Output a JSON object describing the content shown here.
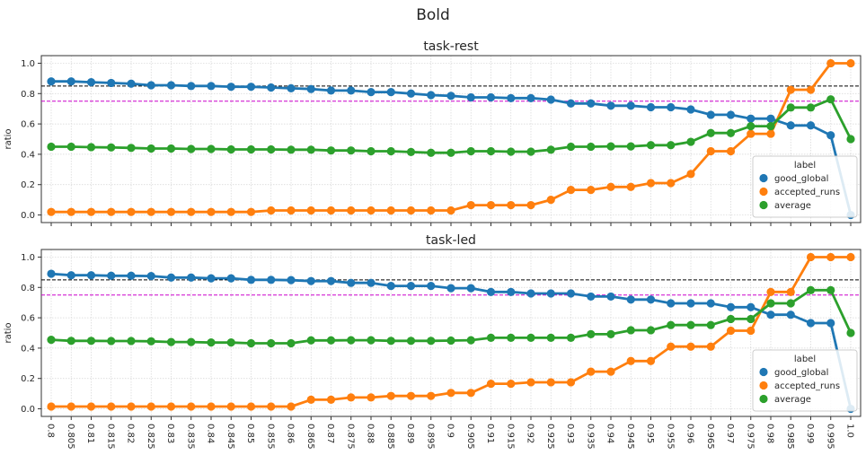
{
  "figure": {
    "suptitle": "Bold"
  },
  "colors": {
    "good_global": "#1f77b4",
    "accepted_runs": "#ff7f0e",
    "average": "#2ca02c",
    "ref_line_085": "#000000",
    "ref_line_075": "#cc00cc"
  },
  "chart_data": [
    {
      "type": "line",
      "title": "task-rest",
      "xlabel": "",
      "ylabel": "ratio",
      "ylim": [
        -0.05,
        1.05
      ],
      "yticks": [
        0.0,
        0.2,
        0.4,
        0.6,
        0.8,
        1.0
      ],
      "ytick_labels": [
        "0.0",
        "0.2",
        "0.4",
        "0.6",
        "0.8",
        "1.0"
      ],
      "show_xtick_labels": false,
      "grid": true,
      "legend": {
        "title": "label",
        "position": "lower-right"
      },
      "reference_lines": [
        {
          "y": 0.85,
          "style": "dashed",
          "color": "#000000"
        },
        {
          "y": 0.75,
          "style": "dashed",
          "color": "#cc00cc"
        }
      ],
      "x": [
        "0.8",
        "0.805",
        "0.81",
        "0.815",
        "0.82",
        "0.825",
        "0.83",
        "0.835",
        "0.84",
        "0.845",
        "0.85",
        "0.855",
        "0.86",
        "0.865",
        "0.87",
        "0.875",
        "0.88",
        "0.885",
        "0.89",
        "0.895",
        "0.9",
        "0.905",
        "0.91",
        "0.915",
        "0.92",
        "0.925",
        "0.93",
        "0.935",
        "0.94",
        "0.945",
        "0.95",
        "0.955",
        "0.96",
        "0.965",
        "0.97",
        "0.975",
        "0.98",
        "0.985",
        "0.99",
        "0.995",
        "1.0"
      ],
      "series": [
        {
          "name": "good_global",
          "values": [
            0.88,
            0.88,
            0.875,
            0.87,
            0.865,
            0.855,
            0.855,
            0.85,
            0.85,
            0.845,
            0.845,
            0.84,
            0.835,
            0.83,
            0.82,
            0.82,
            0.81,
            0.81,
            0.8,
            0.79,
            0.785,
            0.775,
            0.775,
            0.77,
            0.77,
            0.76,
            0.735,
            0.735,
            0.72,
            0.72,
            0.71,
            0.71,
            0.695,
            0.66,
            0.66,
            0.635,
            0.635,
            0.59,
            0.59,
            0.525,
            0.0
          ]
        },
        {
          "name": "accepted_runs",
          "values": [
            0.02,
            0.02,
            0.02,
            0.02,
            0.02,
            0.02,
            0.02,
            0.02,
            0.02,
            0.02,
            0.02,
            0.03,
            0.03,
            0.03,
            0.03,
            0.03,
            0.03,
            0.03,
            0.03,
            0.03,
            0.03,
            0.065,
            0.065,
            0.065,
            0.065,
            0.1,
            0.165,
            0.165,
            0.185,
            0.185,
            0.21,
            0.21,
            0.27,
            0.42,
            0.42,
            0.535,
            0.535,
            0.825,
            0.825,
            1.0,
            1.0
          ]
        },
        {
          "name": "average",
          "values": [
            0.45,
            0.45,
            0.447,
            0.445,
            0.442,
            0.438,
            0.438,
            0.435,
            0.435,
            0.432,
            0.432,
            0.432,
            0.43,
            0.43,
            0.425,
            0.425,
            0.42,
            0.42,
            0.415,
            0.41,
            0.41,
            0.42,
            0.42,
            0.417,
            0.417,
            0.43,
            0.45,
            0.45,
            0.452,
            0.452,
            0.46,
            0.46,
            0.482,
            0.54,
            0.54,
            0.585,
            0.585,
            0.708,
            0.708,
            0.762,
            0.5
          ]
        }
      ]
    },
    {
      "type": "line",
      "title": "task-led",
      "xlabel": "",
      "ylabel": "ratio",
      "ylim": [
        -0.05,
        1.05
      ],
      "yticks": [
        0.0,
        0.2,
        0.4,
        0.6,
        0.8,
        1.0
      ],
      "ytick_labels": [
        "0.0",
        "0.2",
        "0.4",
        "0.6",
        "0.8",
        "1.0"
      ],
      "show_xtick_labels": true,
      "grid": true,
      "legend": {
        "title": "label",
        "position": "lower-right"
      },
      "reference_lines": [
        {
          "y": 0.85,
          "style": "dashed",
          "color": "#000000"
        },
        {
          "y": 0.75,
          "style": "dashed",
          "color": "#cc00cc"
        }
      ],
      "x": [
        "0.8",
        "0.805",
        "0.81",
        "0.815",
        "0.82",
        "0.825",
        "0.83",
        "0.835",
        "0.84",
        "0.845",
        "0.85",
        "0.855",
        "0.86",
        "0.865",
        "0.87",
        "0.875",
        "0.88",
        "0.885",
        "0.89",
        "0.895",
        "0.9",
        "0.905",
        "0.91",
        "0.915",
        "0.92",
        "0.925",
        "0.93",
        "0.935",
        "0.94",
        "0.945",
        "0.95",
        "0.955",
        "0.96",
        "0.965",
        "0.97",
        "0.975",
        "0.98",
        "0.985",
        "0.99",
        "0.995",
        "1.0"
      ],
      "series": [
        {
          "name": "good_global",
          "values": [
            0.89,
            0.88,
            0.88,
            0.877,
            0.877,
            0.875,
            0.865,
            0.865,
            0.86,
            0.86,
            0.85,
            0.85,
            0.848,
            0.842,
            0.842,
            0.83,
            0.83,
            0.81,
            0.81,
            0.81,
            0.795,
            0.795,
            0.77,
            0.77,
            0.76,
            0.76,
            0.76,
            0.74,
            0.74,
            0.72,
            0.72,
            0.695,
            0.695,
            0.695,
            0.67,
            0.67,
            0.62,
            0.62,
            0.565,
            0.565,
            0.0
          ]
        },
        {
          "name": "accepted_runs",
          "values": [
            0.015,
            0.015,
            0.015,
            0.015,
            0.015,
            0.015,
            0.015,
            0.015,
            0.015,
            0.015,
            0.015,
            0.015,
            0.015,
            0.06,
            0.06,
            0.075,
            0.075,
            0.085,
            0.085,
            0.085,
            0.105,
            0.105,
            0.165,
            0.165,
            0.175,
            0.175,
            0.175,
            0.245,
            0.245,
            0.315,
            0.315,
            0.41,
            0.41,
            0.41,
            0.515,
            0.515,
            0.77,
            0.77,
            1.0,
            1.0,
            1.0
          ]
        },
        {
          "name": "average",
          "values": [
            0.455,
            0.448,
            0.448,
            0.447,
            0.447,
            0.445,
            0.44,
            0.44,
            0.437,
            0.437,
            0.432,
            0.432,
            0.432,
            0.451,
            0.451,
            0.452,
            0.452,
            0.448,
            0.448,
            0.448,
            0.45,
            0.452,
            0.468,
            0.468,
            0.468,
            0.468,
            0.468,
            0.492,
            0.492,
            0.518,
            0.518,
            0.552,
            0.552,
            0.552,
            0.592,
            0.592,
            0.695,
            0.695,
            0.782,
            0.782,
            0.5
          ]
        }
      ]
    }
  ]
}
